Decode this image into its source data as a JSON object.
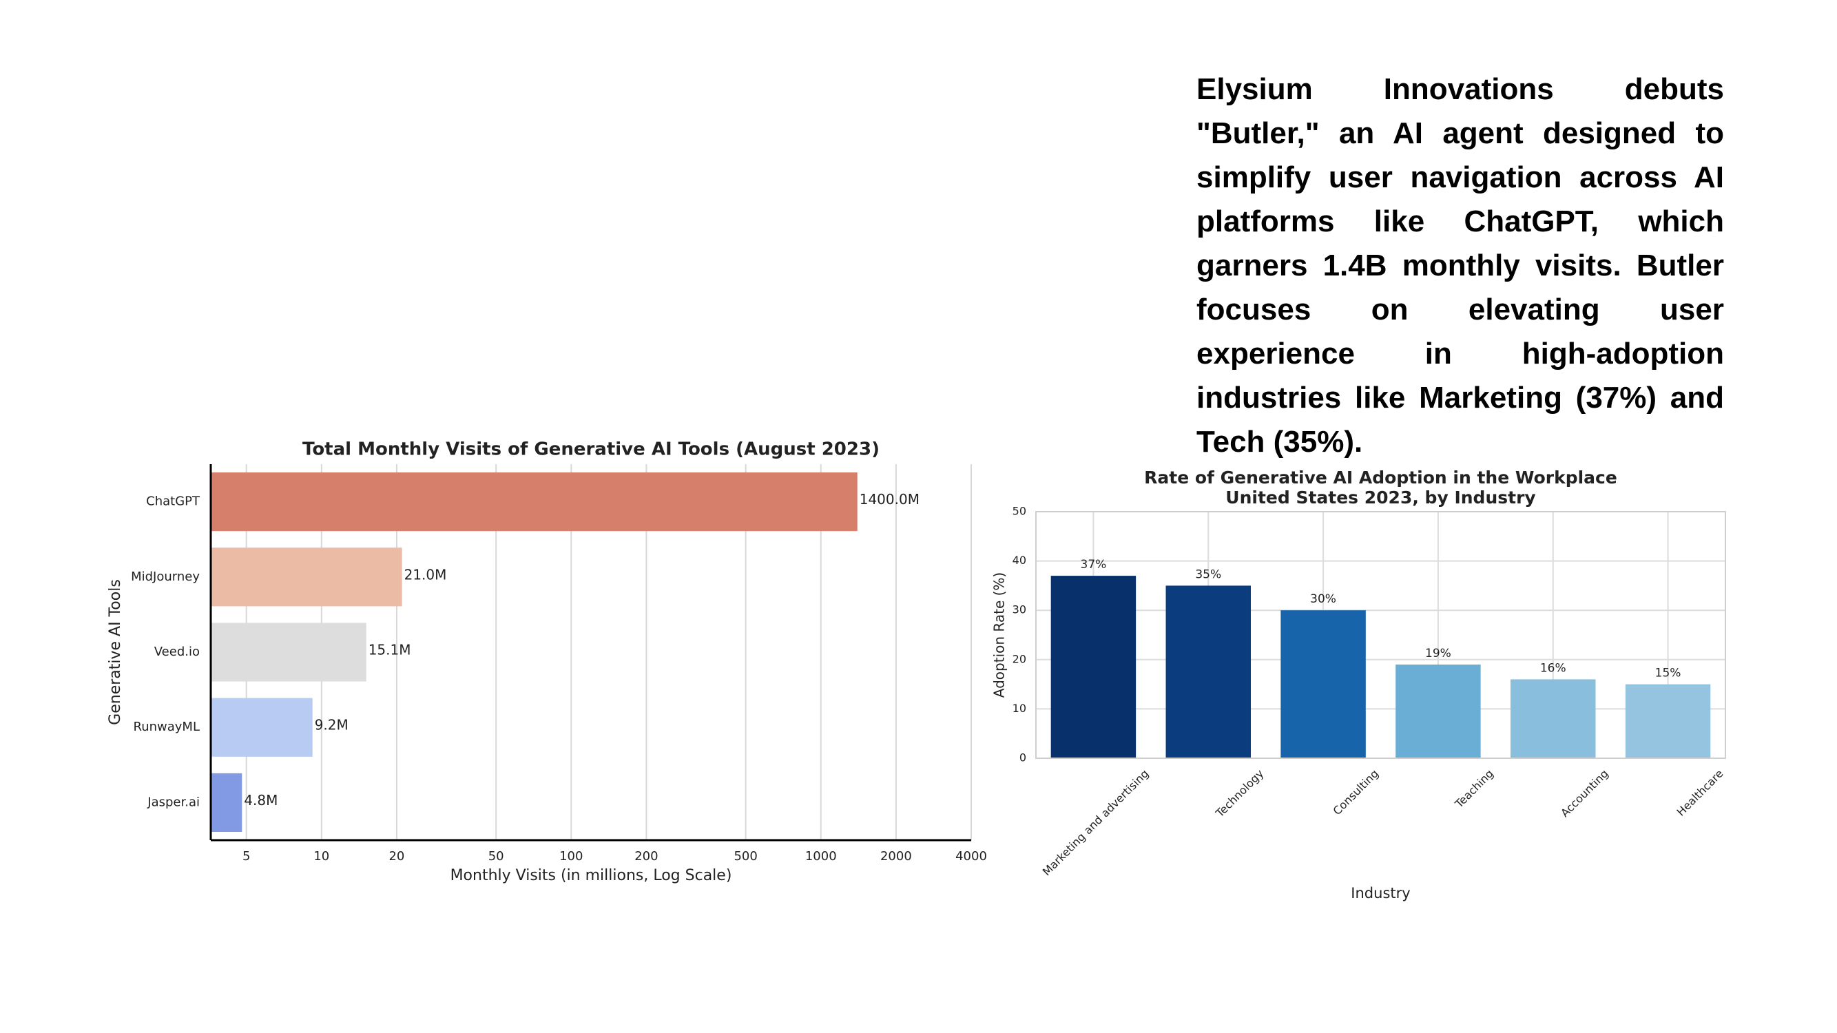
{
  "text": "Elysium Innovations debuts \"Butler,\" an AI agent designed to simplify user navigation across AI platforms like ChatGPT, which garners 1.4B monthly visits. Butler focuses on elevating user experience in high-adoption industries like Marketing (37%) and Tech (35%).",
  "chart_data": [
    {
      "type": "bar",
      "orientation": "horizontal",
      "title": "Total Monthly Visits of Generative AI Tools (August 2023)",
      "x_label": "Monthly Visits (in millions, Log Scale)",
      "y_label": "Generative AI Tools",
      "categories": [
        "ChatGPT",
        "MidJourney",
        "Veed.io",
        "RunwayML",
        "Jasper.ai"
      ],
      "values": [
        1400,
        21,
        15.1,
        9.2,
        4.8
      ],
      "value_labels": [
        "1400.0M",
        "21.0M",
        "15.1M",
        "9.2M",
        "4.8M"
      ],
      "colors": [
        "#d67f6b",
        "#ecbba5",
        "#dcdddc",
        "#b7cbf3",
        "#8299e4"
      ],
      "log_scale": true,
      "xlim": [
        3.6,
        4000
      ],
      "xticks": [
        5,
        10,
        20,
        50,
        100,
        200,
        500,
        1000,
        2000,
        4000
      ],
      "grid": true
    },
    {
      "type": "bar",
      "orientation": "vertical",
      "title": "Rate of Generative AI Adoption in the Workplace",
      "subtitle": "United States 2023, by Industry",
      "x_label": "Industry",
      "y_label": "Adoption Rate (%)",
      "categories": [
        "Marketing and advertising",
        "Technology",
        "Consulting",
        "Teaching",
        "Accounting",
        "Healthcare"
      ],
      "values": [
        37,
        35,
        30,
        19,
        16,
        15
      ],
      "value_labels": [
        "37%",
        "35%",
        "30%",
        "19%",
        "16%",
        "15%"
      ],
      "colors": [
        "#08306b",
        "#0b3d7e",
        "#1764ab",
        "#6aaed6",
        "#89bedc",
        "#94c4df"
      ],
      "ylim": [
        0,
        50
      ],
      "yticks": [
        0,
        10,
        20,
        30,
        40,
        50
      ],
      "grid": true
    }
  ]
}
